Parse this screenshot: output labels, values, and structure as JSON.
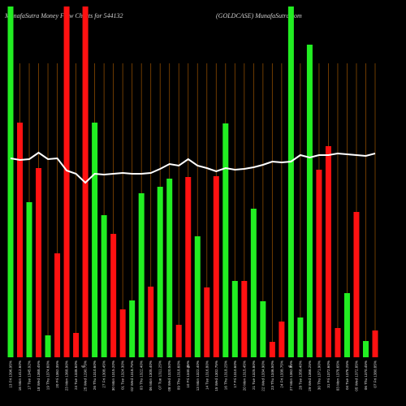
{
  "chart_data": {
    "type": "bar",
    "title": "MunafaSutra  Money Flow  Charts for 544132",
    "subtitle": "(GOLDCASE) MunafaSutra.com",
    "categories": [
      "13 Fri 1396.95%",
      "16 Mon 1412.60%",
      "17 Tue 1345.92%",
      "18 Wed 1368.45%",
      "19 Thu 1374.60%",
      "20 Fri 1362.35%",
      "23 Mon 1368.90%",
      "24 Tue 1338.60%",
      "25 Wed 1290.75%",
      "26 Thu 1310.60%",
      "27 Fri 1308.45%",
      "30 Mon 1315.20%",
      "01 Tue 1324.30%",
      "02 Wed 1318.75%",
      "03 Thu 1322.40%",
      "06 Mon 1305.40%",
      "07 Tue 1311.25%",
      "08 Wed 1320.50%",
      "09 Thu 1318.60%",
      "10 Fri 1340.25%",
      "13 Mon 1322.40%",
      "14 Tue 1316.80%",
      "15 Wed 1302.75%",
      "16 Thu 1318.25%",
      "17 Fri 1310.60%",
      "20 Mon 1315.45%",
      "21 Tue 1325.80%",
      "22 Wed 1334.90%",
      "23 Thu 1346.50%",
      "24 Fri 1338.75%",
      "27 Mon 1362.35%",
      "28 Tue 1358.40%",
      "29 Wed 1366.25%",
      "30 Thu 1371.90%",
      "31 Fri 1372.60%",
      "03 Mon 1378.65%",
      "04 Tue 1376.25%",
      "05 Wed 1372.85%",
      "06 Thu 1370.45%",
      "07 Fri 1380.85%"
    ],
    "values": [
      432,
      289,
      191,
      233,
      27,
      128,
      432,
      30,
      432,
      289,
      175,
      152,
      59,
      70,
      202,
      87,
      210,
      220,
      40,
      222,
      149,
      86,
      223,
      288,
      94,
      94,
      183,
      69,
      19,
      44,
      432,
      49,
      385,
      231,
      260,
      36,
      79,
      179,
      20,
      33
    ],
    "colors": [
      "#22ee22",
      "#ff1111",
      "#22ee22",
      "#ff1111",
      "#22ee22",
      "#ff1111",
      "#ff1111",
      "#ff1111",
      "#ff1111",
      "#22ee22",
      "#22ee22",
      "#ff1111",
      "#ff1111",
      "#22ee22",
      "#22ee22",
      "#ff1111",
      "#22ee22",
      "#22ee22",
      "#ff1111",
      "#ff1111",
      "#22ee22",
      "#ff1111",
      "#ff1111",
      "#22ee22",
      "#22ee22",
      "#ff1111",
      "#22ee22",
      "#22ee22",
      "#ff1111",
      "#ff1111",
      "#22ee22",
      "#22ee22",
      "#22ee22",
      "#ff1111",
      "#ff1111",
      "#ff1111",
      "#22ee22",
      "#ff1111",
      "#22ee22",
      "#ff1111"
    ],
    "line": {
      "color": "#ffffff",
      "values": [
        245,
        243,
        244,
        252,
        244,
        245,
        230,
        226,
        215,
        226,
        225,
        226,
        227,
        226,
        226,
        227,
        232,
        238,
        236,
        244,
        236,
        233,
        229,
        233,
        231,
        232,
        234,
        237,
        241,
        240,
        241,
        249,
        246,
        249,
        249,
        251,
        250,
        249,
        248,
        251
      ]
    },
    "ylim": [
      0,
      432
    ],
    "grid_color": "#8a4a00",
    "percent_marks": [
      "%",
      "%",
      "%"
    ]
  }
}
